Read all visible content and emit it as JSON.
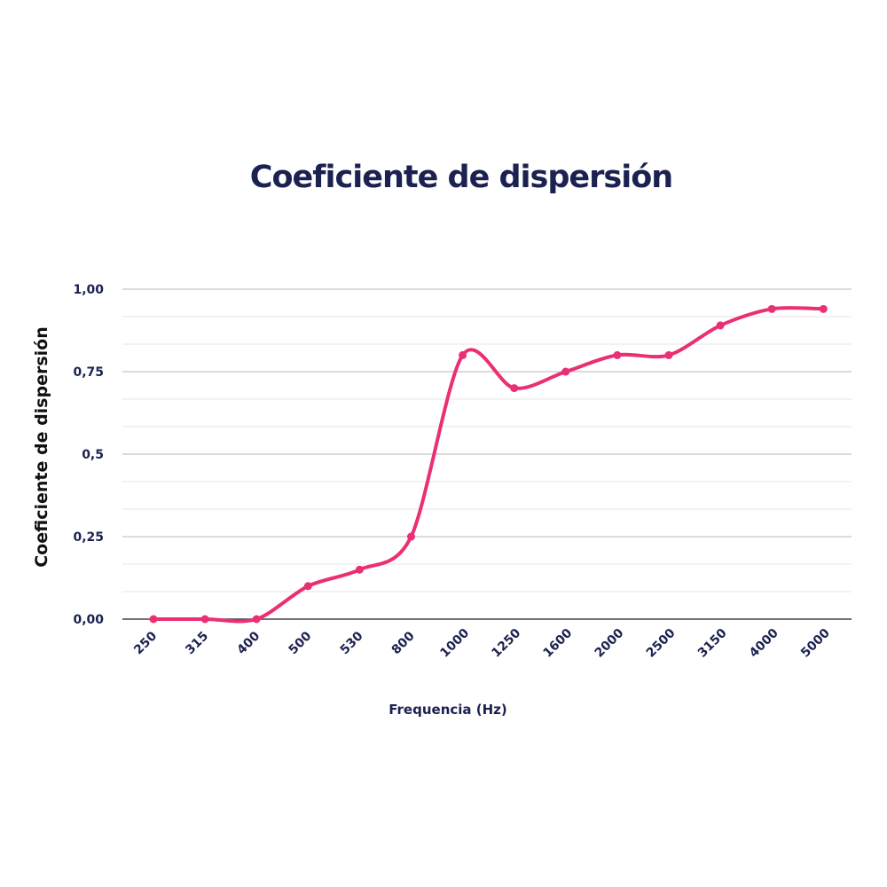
{
  "colors": {
    "title": "#1b2150",
    "axis_text": "#1b2150",
    "ylabel_text": "#111111",
    "line": "#ea2f74",
    "grid_major": "#cfcfcf",
    "grid_minor": "#e6e6e6",
    "axis_line": "#444444",
    "background": "#ffffff"
  },
  "chart_data": {
    "type": "line",
    "title": "Coeficiente de dispersión",
    "xlabel": "Frequencia (Hz)",
    "ylabel": "Coeficiente de dispersión",
    "categories": [
      "250",
      "315",
      "400",
      "500",
      "530",
      "800",
      "1000",
      "1250",
      "1600",
      "2000",
      "2500",
      "3150",
      "4000",
      "5000"
    ],
    "series": [
      {
        "values": [
          0.0,
          0.0,
          0.0,
          0.1,
          0.15,
          0.25,
          0.8,
          0.7,
          0.75,
          0.8,
          0.8,
          0.89,
          0.94,
          0.94
        ]
      }
    ],
    "ylim": [
      0,
      1
    ],
    "yticks": [
      0,
      0.25,
      0.5,
      0.75,
      1
    ],
    "ytick_labels": [
      "0,00",
      "0,25",
      "0,5",
      "0,75",
      "1,00"
    ],
    "grid": true,
    "legend": false
  }
}
